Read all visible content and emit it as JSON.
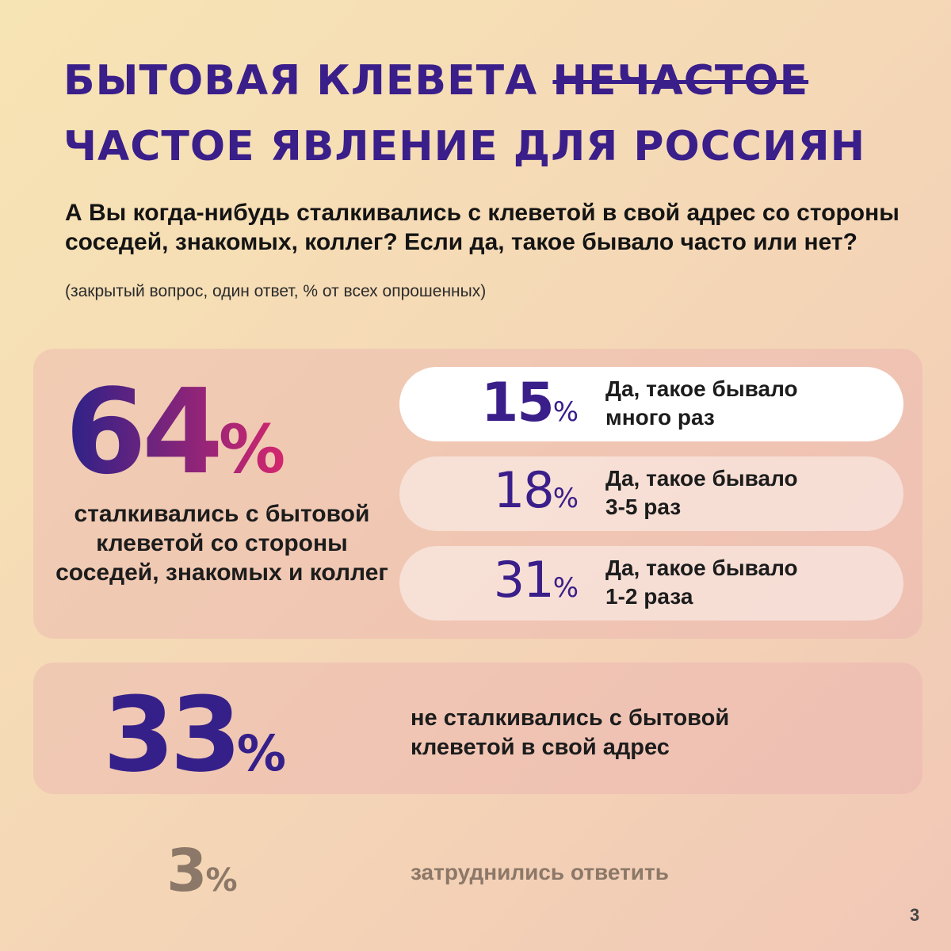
{
  "header": {
    "title_part1": "БЫТОВАЯ КЛЕВЕТА",
    "title_struck": "НЕЧАСТОЕ",
    "title_line2": "ЧАСТОЕ ЯВЛЕНИЕ ДЛЯ РОССИЯН"
  },
  "question": {
    "text": "А Вы когда-нибудь сталкивались с клеветой в свой адрес со стороны соседей, знакомых, коллег? Если да, такое бывало часто или нет?",
    "note": "(закрытый вопрос, один ответ, % от всех опрошенных)"
  },
  "encountered": {
    "value": "64",
    "unit": "%",
    "caption": "сталкивались с бытовой клеветой со стороны соседей, знакомых и коллег",
    "breakdown": [
      {
        "value": "15",
        "unit": "%",
        "label_line1": "Да, такое бывало",
        "label_line2": "много раз"
      },
      {
        "value": "18",
        "unit": "%",
        "label_line1": "Да, такое бывало",
        "label_line2": "3-5 раз"
      },
      {
        "value": "31",
        "unit": "%",
        "label_line1": "Да, такое бывало",
        "label_line2": "1-2 раза"
      }
    ]
  },
  "not_encountered": {
    "value": "33",
    "unit": "%",
    "text": "не сталкивались с бытовой клеветой в свой адрес"
  },
  "hard_to_say": {
    "value": "3",
    "unit": "%",
    "text": "затруднились ответить"
  },
  "page_number": "3",
  "colors": {
    "accent": "#3a1e8a",
    "gradient_start": "#2b2188",
    "gradient_end": "#d3276e",
    "muted": "#8c7868"
  }
}
